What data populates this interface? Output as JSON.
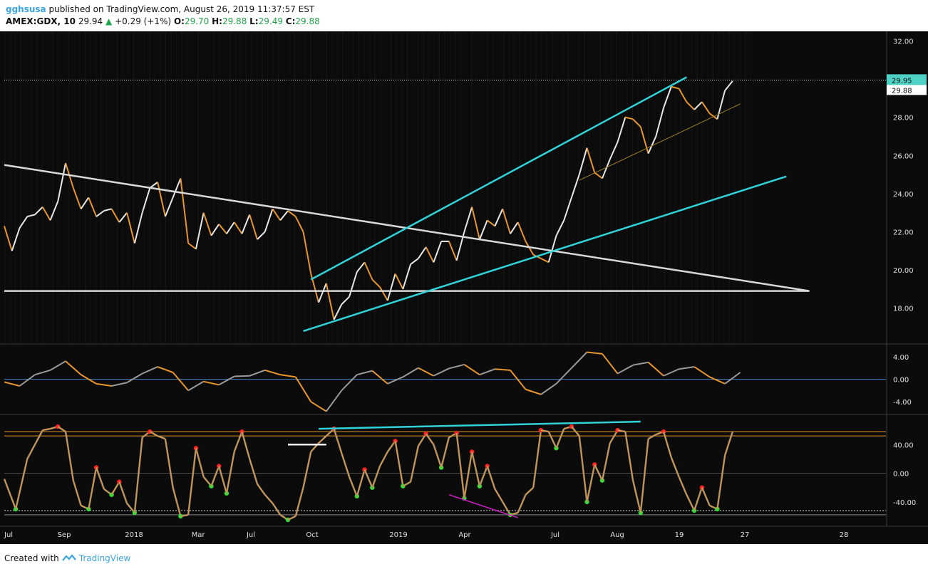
{
  "header": {
    "user": "gghsusa",
    "published": "published on TradingView.com, August 26, 2019 11:37:57 EST",
    "symbol": "AMEX:GDX, 10",
    "last": "29.94",
    "change": "+0.29 (+1%)",
    "o_label": "O:",
    "o_value": "29.70",
    "h_label": "H:",
    "h_value": "29.88",
    "l_label": "L:",
    "l_value": "29.49",
    "c_label": "C:",
    "c_value": "29.88"
  },
  "footer": {
    "created": "Created with",
    "brand": "TradingView"
  },
  "colors": {
    "background": "#0b0b0b",
    "up": "#e8e8e8",
    "down": "#e8962a",
    "cyan": "#2fd3d8",
    "trend": "#d8d8d8",
    "support": "#9a7d2a",
    "macd_zero": "#3b7fbf",
    "band_orange": "#e8962a",
    "band_white": "#cfcfcf",
    "magenta": "#d21fc8",
    "dot_red": "#ff2020",
    "dot_green": "#33e033",
    "price_tag": "#4fd1c5"
  },
  "chart_data": {
    "type": "line",
    "title": "AMEX:GDX, 10",
    "x_ticks": [
      "Jul",
      "Sep",
      "2018",
      "Mar",
      "Jul",
      "Oct",
      "2019",
      "Apr",
      "Jul",
      "Aug",
      "19",
      "27",
      "28"
    ],
    "price_ticks": [
      "32.00",
      "30.00",
      "28.00",
      "26.00",
      "24.00",
      "22.00",
      "20.00",
      "18.00"
    ],
    "price_ylim": [
      16.2,
      32.5
    ],
    "price_labels": {
      "last": "29.95",
      "close": "29.88"
    },
    "price_series": [
      [
        0,
        22.3
      ],
      [
        2,
        21.0
      ],
      [
        4,
        22.2
      ],
      [
        6,
        22.8
      ],
      [
        8,
        22.9
      ],
      [
        10,
        23.3
      ],
      [
        12,
        22.6
      ],
      [
        14,
        23.6
      ],
      [
        16,
        25.6
      ],
      [
        18,
        24.3
      ],
      [
        20,
        23.2
      ],
      [
        22,
        23.8
      ],
      [
        24,
        22.8
      ],
      [
        26,
        23.1
      ],
      [
        28,
        23.2
      ],
      [
        30,
        22.5
      ],
      [
        32,
        23.0
      ],
      [
        34,
        21.4
      ],
      [
        36,
        23.0
      ],
      [
        38,
        24.3
      ],
      [
        40,
        24.6
      ],
      [
        42,
        22.8
      ],
      [
        44,
        23.8
      ],
      [
        46,
        24.8
      ],
      [
        48,
        21.4
      ],
      [
        50,
        21.1
      ],
      [
        52,
        23.0
      ],
      [
        54,
        21.8
      ],
      [
        56,
        22.4
      ],
      [
        58,
        21.9
      ],
      [
        60,
        22.5
      ],
      [
        62,
        21.9
      ],
      [
        64,
        22.9
      ],
      [
        66,
        21.6
      ],
      [
        68,
        22.0
      ],
      [
        70,
        23.2
      ],
      [
        72,
        22.6
      ],
      [
        74,
        23.1
      ],
      [
        76,
        22.8
      ],
      [
        78,
        22.0
      ],
      [
        80,
        19.8
      ],
      [
        82,
        18.3
      ],
      [
        84,
        19.3
      ],
      [
        86,
        17.4
      ],
      [
        88,
        18.2
      ],
      [
        90,
        18.6
      ],
      [
        92,
        19.9
      ],
      [
        94,
        20.4
      ],
      [
        96,
        19.5
      ],
      [
        98,
        19.1
      ],
      [
        100,
        18.4
      ],
      [
        102,
        19.8
      ],
      [
        104,
        19.0
      ],
      [
        106,
        20.3
      ],
      [
        108,
        20.6
      ],
      [
        110,
        21.2
      ],
      [
        112,
        20.4
      ],
      [
        114,
        21.5
      ],
      [
        116,
        21.5
      ],
      [
        118,
        20.5
      ],
      [
        120,
        22.0
      ],
      [
        122,
        23.3
      ],
      [
        124,
        21.6
      ],
      [
        126,
        22.6
      ],
      [
        128,
        22.3
      ],
      [
        130,
        23.2
      ],
      [
        132,
        21.9
      ],
      [
        134,
        22.5
      ],
      [
        136,
        21.5
      ],
      [
        138,
        20.8
      ],
      [
        140,
        20.6
      ],
      [
        142,
        20.4
      ],
      [
        144,
        21.8
      ],
      [
        146,
        22.6
      ],
      [
        148,
        23.8
      ],
      [
        150,
        25.0
      ],
      [
        152,
        26.4
      ],
      [
        154,
        25.1
      ],
      [
        156,
        24.8
      ],
      [
        158,
        25.8
      ],
      [
        160,
        26.7
      ],
      [
        162,
        28.0
      ],
      [
        164,
        27.9
      ],
      [
        166,
        27.5
      ],
      [
        168,
        26.1
      ],
      [
        170,
        27.0
      ],
      [
        172,
        28.5
      ],
      [
        174,
        29.6
      ],
      [
        176,
        29.5
      ],
      [
        178,
        28.8
      ],
      [
        180,
        28.4
      ],
      [
        182,
        28.8
      ],
      [
        184,
        28.2
      ],
      [
        186,
        27.9
      ],
      [
        188,
        29.4
      ],
      [
        190,
        29.9
      ]
    ],
    "trendlines": [
      {
        "name": "long-downtrend",
        "from": [
          0,
          25.5
        ],
        "to": [
          210,
          18.9
        ]
      },
      {
        "name": "horizontal-support",
        "from": [
          0,
          18.9
        ],
        "to": [
          210,
          18.9
        ]
      },
      {
        "name": "channel-upper",
        "from": [
          80,
          19.5
        ],
        "to": [
          178,
          30.1
        ]
      },
      {
        "name": "channel-lower",
        "from": [
          78,
          16.8
        ],
        "to": [
          204,
          24.9
        ]
      },
      {
        "name": "minor-support",
        "from": [
          150,
          24.7
        ],
        "to": [
          192,
          28.7
        ]
      }
    ],
    "macd_ticks": [
      "4.00",
      "0.00",
      "-4.00"
    ],
    "macd_ylim": [
      -6.0,
      6.0
    ],
    "macd_series": [
      [
        0,
        -0.5
      ],
      [
        4,
        -1.2
      ],
      [
        8,
        0.8
      ],
      [
        12,
        1.6
      ],
      [
        16,
        3.2
      ],
      [
        20,
        0.8
      ],
      [
        24,
        -0.8
      ],
      [
        28,
        -1.2
      ],
      [
        32,
        -0.6
      ],
      [
        36,
        1.0
      ],
      [
        40,
        2.2
      ],
      [
        44,
        1.2
      ],
      [
        48,
        -2.0
      ],
      [
        52,
        -0.4
      ],
      [
        56,
        -1.0
      ],
      [
        60,
        0.5
      ],
      [
        64,
        0.6
      ],
      [
        68,
        1.6
      ],
      [
        72,
        0.8
      ],
      [
        76,
        0.4
      ],
      [
        80,
        -4.0
      ],
      [
        84,
        -5.7
      ],
      [
        88,
        -2.0
      ],
      [
        92,
        0.8
      ],
      [
        96,
        1.5
      ],
      [
        100,
        -0.8
      ],
      [
        104,
        0.4
      ],
      [
        108,
        2.0
      ],
      [
        112,
        0.6
      ],
      [
        116,
        1.9
      ],
      [
        120,
        2.6
      ],
      [
        124,
        0.8
      ],
      [
        128,
        1.8
      ],
      [
        132,
        1.6
      ],
      [
        136,
        -1.8
      ],
      [
        140,
        -2.7
      ],
      [
        144,
        -0.8
      ],
      [
        148,
        2.0
      ],
      [
        152,
        4.8
      ],
      [
        156,
        4.5
      ],
      [
        160,
        1.0
      ],
      [
        164,
        2.5
      ],
      [
        168,
        3.0
      ],
      [
        172,
        0.6
      ],
      [
        176,
        1.8
      ],
      [
        180,
        2.2
      ],
      [
        184,
        0.4
      ],
      [
        188,
        -0.8
      ],
      [
        192,
        1.2
      ]
    ],
    "stoch_ticks": [
      "40.00",
      "0.00",
      "-40.00"
    ],
    "stoch_ylim": [
      -72,
      80
    ],
    "stoch_series": [
      [
        0,
        -8
      ],
      [
        3,
        -50
      ],
      [
        6,
        20
      ],
      [
        8,
        40
      ],
      [
        10,
        60
      ],
      [
        12,
        62
      ],
      [
        14,
        65
      ],
      [
        16,
        58
      ],
      [
        18,
        -10
      ],
      [
        20,
        -45
      ],
      [
        22,
        -50
      ],
      [
        24,
        8
      ],
      [
        26,
        -22
      ],
      [
        28,
        -30
      ],
      [
        30,
        -12
      ],
      [
        32,
        -42
      ],
      [
        34,
        -55
      ],
      [
        36,
        50
      ],
      [
        38,
        58
      ],
      [
        40,
        52
      ],
      [
        42,
        48
      ],
      [
        44,
        -20
      ],
      [
        46,
        -60
      ],
      [
        48,
        -58
      ],
      [
        50,
        35
      ],
      [
        52,
        -5
      ],
      [
        54,
        -18
      ],
      [
        56,
        10
      ],
      [
        58,
        -28
      ],
      [
        60,
        30
      ],
      [
        62,
        58
      ],
      [
        64,
        20
      ],
      [
        66,
        -15
      ],
      [
        68,
        -30
      ],
      [
        70,
        -42
      ],
      [
        72,
        -58
      ],
      [
        74,
        -65
      ],
      [
        76,
        -60
      ],
      [
        78,
        -20
      ],
      [
        80,
        30
      ],
      [
        82,
        42
      ],
      [
        84,
        52
      ],
      [
        86,
        62
      ],
      [
        88,
        28
      ],
      [
        90,
        -5
      ],
      [
        92,
        -32
      ],
      [
        94,
        5
      ],
      [
        96,
        -20
      ],
      [
        98,
        10
      ],
      [
        100,
        30
      ],
      [
        102,
        45
      ],
      [
        104,
        -18
      ],
      [
        106,
        -12
      ],
      [
        108,
        38
      ],
      [
        110,
        55
      ],
      [
        112,
        40
      ],
      [
        114,
        8
      ],
      [
        116,
        50
      ],
      [
        118,
        56
      ],
      [
        120,
        -35
      ],
      [
        122,
        30
      ],
      [
        124,
        -18
      ],
      [
        126,
        10
      ],
      [
        128,
        -22
      ],
      [
        130,
        -40
      ],
      [
        132,
        -58
      ],
      [
        134,
        -55
      ],
      [
        136,
        -30
      ],
      [
        138,
        -20
      ],
      [
        140,
        60
      ],
      [
        142,
        58
      ],
      [
        144,
        35
      ],
      [
        146,
        62
      ],
      [
        148,
        65
      ],
      [
        150,
        52
      ],
      [
        152,
        -40
      ],
      [
        154,
        12
      ],
      [
        156,
        -10
      ],
      [
        158,
        42
      ],
      [
        160,
        60
      ],
      [
        162,
        58
      ],
      [
        164,
        -10
      ],
      [
        166,
        -55
      ],
      [
        168,
        48
      ],
      [
        170,
        54
      ],
      [
        172,
        58
      ],
      [
        174,
        22
      ],
      [
        176,
        -5
      ],
      [
        178,
        -30
      ],
      [
        180,
        -52
      ],
      [
        182,
        -20
      ],
      [
        184,
        -45
      ],
      [
        186,
        -50
      ],
      [
        188,
        25
      ],
      [
        190,
        58
      ]
    ],
    "stoch_bands": {
      "orange_upper": 58,
      "orange_lower": 52,
      "white_lower_a": -52,
      "white_lower_b": -58
    },
    "stoch_annotations": [
      {
        "name": "divergence-top",
        "color": "cyan",
        "from": [
          82,
          62
        ],
        "to": [
          166,
          72
        ]
      },
      {
        "name": "white-mark",
        "color": "white",
        "from": [
          74,
          40
        ],
        "to": [
          84,
          40
        ]
      },
      {
        "name": "bull-divergence",
        "color": "magenta",
        "from": [
          116,
          -30
        ],
        "to": [
          134,
          -62
        ]
      }
    ],
    "x_range": [
      0,
      230
    ]
  }
}
